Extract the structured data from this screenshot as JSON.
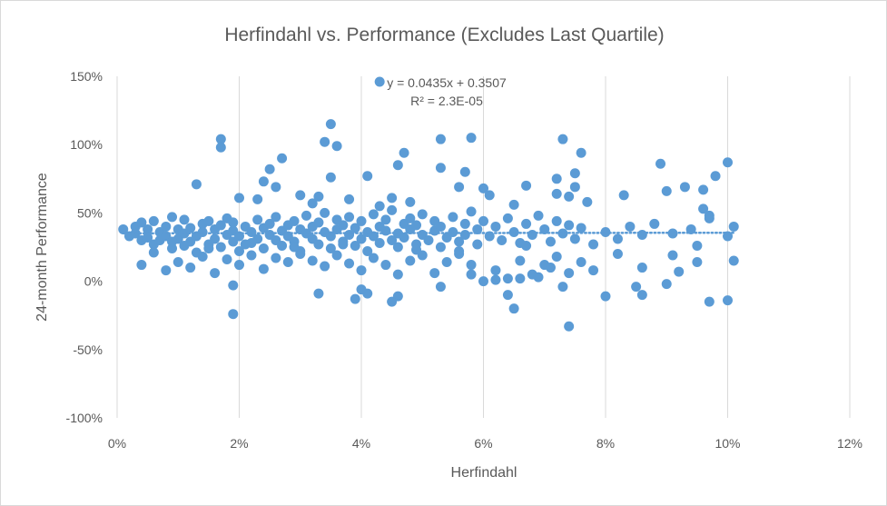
{
  "chart_data": {
    "type": "scatter",
    "title": "Herfindahl vs. Performance (Excludes Last Quartile)",
    "xlabel": "Herfindahl",
    "ylabel": "24-month Performance",
    "xlim": [
      0,
      0.12
    ],
    "ylim": [
      -1.0,
      1.5
    ],
    "x_ticks": [
      0,
      0.02,
      0.04,
      0.06,
      0.08,
      0.1,
      0.12
    ],
    "x_tick_labels": [
      "0%",
      "2%",
      "4%",
      "6%",
      "8%",
      "10%",
      "12%"
    ],
    "y_ticks": [
      -1.0,
      -0.5,
      0,
      0.5,
      1.0,
      1.5
    ],
    "y_tick_labels": [
      "-100%",
      "-50%",
      "0%",
      "50%",
      "100%",
      "150%"
    ],
    "grid": "vertical",
    "legend": "none",
    "marker_color": "#5b9bd5",
    "trendline": {
      "type": "linear",
      "slope": 0.0435,
      "intercept": 0.3507,
      "style": "dotted",
      "x_range": [
        0.001,
        0.101
      ],
      "equation": "y = 0.0435x + 0.3507",
      "r_squared": "R² = 2.3E-05"
    },
    "series": [
      {
        "points": [
          [
            0.001,
            0.38
          ],
          [
            0.002,
            0.33
          ],
          [
            0.003,
            0.4
          ],
          [
            0.003,
            0.35
          ],
          [
            0.004,
            0.3
          ],
          [
            0.004,
            0.43
          ],
          [
            0.005,
            0.38
          ],
          [
            0.005,
            0.32
          ],
          [
            0.006,
            0.27
          ],
          [
            0.006,
            0.44
          ],
          [
            0.007,
            0.36
          ],
          [
            0.007,
            0.3
          ],
          [
            0.008,
            0.4
          ],
          [
            0.008,
            0.33
          ],
          [
            0.009,
            0.24
          ],
          [
            0.009,
            0.47
          ],
          [
            0.01,
            0.38
          ],
          [
            0.01,
            0.31
          ],
          [
            0.011,
            0.35
          ],
          [
            0.011,
            0.45
          ],
          [
            0.012,
            0.29
          ],
          [
            0.012,
            0.39
          ],
          [
            0.013,
            0.33
          ],
          [
            0.013,
            0.21
          ],
          [
            0.014,
            0.42
          ],
          [
            0.014,
            0.36
          ],
          [
            0.015,
            0.27
          ],
          [
            0.015,
            0.44
          ],
          [
            0.016,
            0.31
          ],
          [
            0.016,
            0.38
          ],
          [
            0.017,
            0.25
          ],
          [
            0.017,
            0.41
          ],
          [
            0.018,
            0.34
          ],
          [
            0.018,
            0.46
          ],
          [
            0.019,
            0.29
          ],
          [
            0.019,
            0.37
          ],
          [
            0.019,
            0.43
          ],
          [
            0.02,
            0.22
          ],
          [
            0.02,
            0.33
          ],
          [
            0.021,
            0.4
          ],
          [
            0.022,
            0.28
          ],
          [
            0.022,
            0.36
          ],
          [
            0.023,
            0.45
          ],
          [
            0.023,
            0.31
          ],
          [
            0.024,
            0.39
          ],
          [
            0.024,
            0.24
          ],
          [
            0.025,
            0.42
          ],
          [
            0.025,
            0.34
          ],
          [
            0.026,
            0.3
          ],
          [
            0.026,
            0.47
          ],
          [
            0.027,
            0.37
          ],
          [
            0.027,
            0.26
          ],
          [
            0.028,
            0.41
          ],
          [
            0.028,
            0.33
          ],
          [
            0.029,
            0.44
          ],
          [
            0.029,
            0.29
          ],
          [
            0.03,
            0.38
          ],
          [
            0.03,
            0.22
          ],
          [
            0.031,
            0.35
          ],
          [
            0.031,
            0.48
          ],
          [
            0.032,
            0.31
          ],
          [
            0.032,
            0.4
          ],
          [
            0.033,
            0.27
          ],
          [
            0.033,
            0.43
          ],
          [
            0.034,
            0.36
          ],
          [
            0.034,
            0.5
          ],
          [
            0.035,
            0.33
          ],
          [
            0.035,
            0.24
          ],
          [
            0.036,
            0.45
          ],
          [
            0.036,
            0.38
          ],
          [
            0.037,
            0.29
          ],
          [
            0.037,
            0.41
          ],
          [
            0.038,
            0.34
          ],
          [
            0.038,
            0.47
          ],
          [
            0.039,
            0.26
          ],
          [
            0.039,
            0.39
          ],
          [
            0.04,
            0.44
          ],
          [
            0.04,
            0.31
          ],
          [
            0.041,
            0.36
          ],
          [
            0.041,
            0.22
          ],
          [
            0.042,
            0.49
          ],
          [
            0.042,
            0.33
          ],
          [
            0.043,
            0.4
          ],
          [
            0.043,
            0.28
          ],
          [
            0.044,
            0.45
          ],
          [
            0.044,
            0.37
          ],
          [
            0.045,
            0.3
          ],
          [
            0.045,
            0.52
          ],
          [
            0.046,
            0.35
          ],
          [
            0.046,
            0.25
          ],
          [
            0.047,
            0.42
          ],
          [
            0.047,
            0.32
          ],
          [
            0.048,
            0.46
          ],
          [
            0.048,
            0.38
          ],
          [
            0.049,
            0.27
          ],
          [
            0.049,
            0.41
          ],
          [
            0.05,
            0.34
          ],
          [
            0.05,
            0.49
          ],
          [
            0.051,
            0.3
          ],
          [
            0.052,
            0.44
          ],
          [
            0.052,
            0.37
          ],
          [
            0.053,
            0.25
          ],
          [
            0.053,
            0.4
          ],
          [
            0.054,
            0.32
          ],
          [
            0.055,
            0.47
          ],
          [
            0.055,
            0.36
          ],
          [
            0.056,
            0.29
          ],
          [
            0.057,
            0.42
          ],
          [
            0.057,
            0.34
          ],
          [
            0.058,
            0.51
          ],
          [
            0.059,
            0.38
          ],
          [
            0.059,
            0.27
          ],
          [
            0.06,
            0.44
          ],
          [
            0.061,
            0.33
          ],
          [
            0.062,
            0.4
          ],
          [
            0.063,
            0.3
          ],
          [
            0.064,
            0.46
          ],
          [
            0.065,
            0.36
          ],
          [
            0.066,
            0.28
          ],
          [
            0.067,
            0.42
          ],
          [
            0.068,
            0.34
          ],
          [
            0.069,
            0.48
          ],
          [
            0.07,
            0.38
          ],
          [
            0.071,
            0.29
          ],
          [
            0.072,
            0.44
          ],
          [
            0.073,
            0.35
          ],
          [
            0.074,
            0.41
          ],
          [
            0.075,
            0.31
          ],
          [
            0.076,
            0.39
          ],
          [
            0.078,
            0.27
          ],
          [
            0.08,
            0.36
          ],
          [
            0.082,
            0.31
          ],
          [
            0.084,
            0.4
          ],
          [
            0.086,
            0.34
          ],
          [
            0.088,
            0.42
          ],
          [
            0.091,
            0.35
          ],
          [
            0.094,
            0.38
          ],
          [
            0.097,
            0.46
          ],
          [
            0.1,
            0.33
          ],
          [
            0.101,
            0.4
          ],
          [
            0.004,
            0.12
          ],
          [
            0.006,
            0.21
          ],
          [
            0.008,
            0.08
          ],
          [
            0.01,
            0.14
          ],
          [
            0.012,
            0.1
          ],
          [
            0.014,
            0.18
          ],
          [
            0.016,
            0.06
          ],
          [
            0.018,
            0.16
          ],
          [
            0.02,
            0.12
          ],
          [
            0.022,
            0.19
          ],
          [
            0.024,
            0.09
          ],
          [
            0.026,
            0.17
          ],
          [
            0.028,
            0.14
          ],
          [
            0.03,
            0.2
          ],
          [
            0.032,
            0.15
          ],
          [
            0.034,
            0.11
          ],
          [
            0.036,
            0.19
          ],
          [
            0.038,
            0.13
          ],
          [
            0.04,
            0.08
          ],
          [
            0.042,
            0.17
          ],
          [
            0.044,
            0.12
          ],
          [
            0.046,
            0.05
          ],
          [
            0.048,
            0.15
          ],
          [
            0.05,
            0.19
          ],
          [
            0.052,
            0.06
          ],
          [
            0.054,
            0.14
          ],
          [
            0.056,
            0.2
          ],
          [
            0.058,
            0.12
          ],
          [
            0.06,
            0.0
          ],
          [
            0.062,
            0.08
          ],
          [
            0.064,
            0.02
          ],
          [
            0.066,
            0.15
          ],
          [
            0.068,
            0.05
          ],
          [
            0.07,
            0.12
          ],
          [
            0.072,
            0.18
          ],
          [
            0.074,
            0.06
          ],
          [
            0.076,
            0.14
          ],
          [
            0.078,
            0.08
          ],
          [
            0.082,
            0.2
          ],
          [
            0.086,
            0.1
          ],
          [
            0.09,
            -0.02
          ],
          [
            0.092,
            0.07
          ],
          [
            0.095,
            0.14
          ],
          [
            0.097,
            -0.15
          ],
          [
            0.1,
            -0.14
          ],
          [
            0.095,
            0.26
          ],
          [
            0.091,
            0.19
          ],
          [
            0.085,
            -0.04
          ],
          [
            0.08,
            -0.11
          ],
          [
            0.074,
            -0.33
          ],
          [
            0.071,
            0.1
          ],
          [
            0.073,
            -0.04
          ],
          [
            0.065,
            -0.2
          ],
          [
            0.064,
            -0.1
          ],
          [
            0.058,
            0.05
          ],
          [
            0.053,
            -0.04
          ],
          [
            0.046,
            -0.11
          ],
          [
            0.045,
            -0.15
          ],
          [
            0.041,
            -0.09
          ],
          [
            0.04,
            -0.06
          ],
          [
            0.039,
            -0.13
          ],
          [
            0.033,
            -0.09
          ],
          [
            0.019,
            -0.03
          ],
          [
            0.019,
            -0.24
          ],
          [
            0.062,
            0.01
          ],
          [
            0.066,
            0.02
          ],
          [
            0.069,
            0.03
          ],
          [
            0.086,
            -0.1
          ],
          [
            0.013,
            0.71
          ],
          [
            0.017,
            1.04
          ],
          [
            0.017,
            0.98
          ],
          [
            0.02,
            0.61
          ],
          [
            0.023,
            0.6
          ],
          [
            0.024,
            0.73
          ],
          [
            0.025,
            0.82
          ],
          [
            0.026,
            0.69
          ],
          [
            0.027,
            0.9
          ],
          [
            0.03,
            0.63
          ],
          [
            0.032,
            0.57
          ],
          [
            0.033,
            0.62
          ],
          [
            0.034,
            1.02
          ],
          [
            0.035,
            1.15
          ],
          [
            0.035,
            0.76
          ],
          [
            0.036,
            0.99
          ],
          [
            0.038,
            0.6
          ],
          [
            0.041,
            0.77
          ],
          [
            0.043,
            0.55
          ],
          [
            0.045,
            0.61
          ],
          [
            0.046,
            0.85
          ],
          [
            0.047,
            0.94
          ],
          [
            0.048,
            0.58
          ],
          [
            0.053,
            1.04
          ],
          [
            0.053,
            0.83
          ],
          [
            0.056,
            0.69
          ],
          [
            0.057,
            0.8
          ],
          [
            0.058,
            1.05
          ],
          [
            0.06,
            0.68
          ],
          [
            0.061,
            0.63
          ],
          [
            0.065,
            0.56
          ],
          [
            0.067,
            0.7
          ],
          [
            0.072,
            0.75
          ],
          [
            0.072,
            0.64
          ],
          [
            0.073,
            1.04
          ],
          [
            0.074,
            0.62
          ],
          [
            0.075,
            0.79
          ],
          [
            0.075,
            0.69
          ],
          [
            0.076,
            0.94
          ],
          [
            0.077,
            0.58
          ],
          [
            0.083,
            0.63
          ],
          [
            0.089,
            0.86
          ],
          [
            0.09,
            0.66
          ],
          [
            0.093,
            0.69
          ],
          [
            0.096,
            0.67
          ],
          [
            0.096,
            0.53
          ],
          [
            0.097,
            0.48
          ],
          [
            0.098,
            0.77
          ],
          [
            0.1,
            0.87
          ],
          [
            0.101,
            0.15
          ],
          [
            0.043,
            1.46
          ],
          [
            0.009,
            0.29
          ],
          [
            0.011,
            0.26
          ],
          [
            0.015,
            0.24
          ],
          [
            0.021,
            0.27
          ],
          [
            0.029,
            0.25
          ],
          [
            0.037,
            0.27
          ],
          [
            0.049,
            0.23
          ],
          [
            0.056,
            0.22
          ],
          [
            0.067,
            0.26
          ]
        ]
      }
    ]
  }
}
